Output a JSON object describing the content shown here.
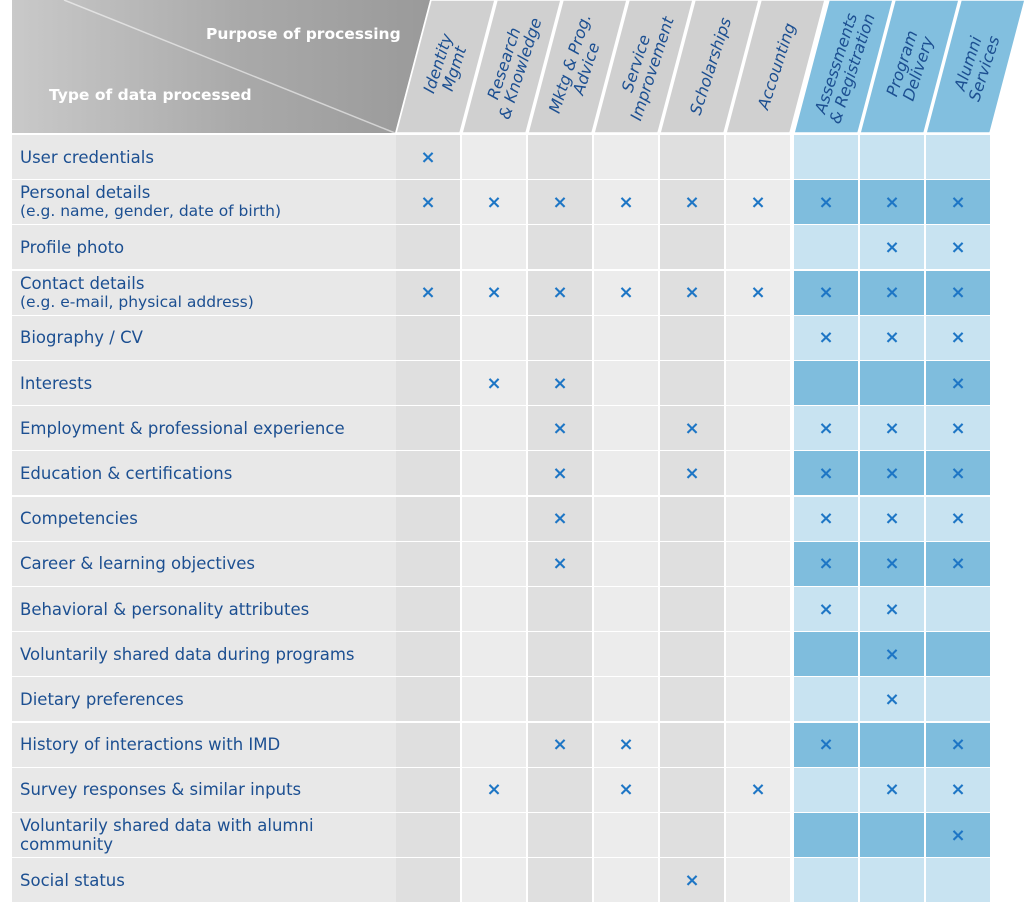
{
  "header": {
    "purpose_label": "Purpose of processing",
    "type_label": "Type of data processed"
  },
  "columns": [
    {
      "id": "identity-mgmt",
      "lines": [
        "Identity",
        "Mgmt"
      ],
      "group": "general"
    },
    {
      "id": "research-knowledge",
      "lines": [
        "Research",
        "& Knowledge"
      ],
      "group": "general"
    },
    {
      "id": "mktg-prog-advice",
      "lines": [
        "Mktg & Prog.",
        "Advice"
      ],
      "group": "general"
    },
    {
      "id": "service-improvement",
      "lines": [
        "Service",
        "Improvement"
      ],
      "group": "general"
    },
    {
      "id": "scholarships",
      "lines": [
        "Scholarships"
      ],
      "group": "general"
    },
    {
      "id": "accounting",
      "lines": [
        "Accounting"
      ],
      "group": "general"
    },
    {
      "id": "assessments-registration",
      "lines": [
        "Assessments",
        "& Registration"
      ],
      "group": "program"
    },
    {
      "id": "program-delivery",
      "lines": [
        "Program",
        "Delivery"
      ],
      "group": "program"
    },
    {
      "id": "alumni-services",
      "lines": [
        "Alumni",
        "Services"
      ],
      "group": "program"
    }
  ],
  "rows": [
    {
      "label": "User credentials",
      "marks": [
        1,
        0,
        0,
        0,
        0,
        0,
        0,
        0,
        0
      ]
    },
    {
      "label": "Personal details",
      "sub": "(e.g. name, gender, date of birth)",
      "marks": [
        1,
        1,
        1,
        1,
        1,
        1,
        1,
        1,
        1
      ]
    },
    {
      "label": "Profile photo",
      "marks": [
        0,
        0,
        0,
        0,
        0,
        0,
        0,
        1,
        1
      ]
    },
    {
      "label": "Contact details",
      "sub": "(e.g. e-mail, physical address)",
      "marks": [
        1,
        1,
        1,
        1,
        1,
        1,
        1,
        1,
        1
      ]
    },
    {
      "label": "Biography / CV",
      "marks": [
        0,
        0,
        0,
        0,
        0,
        0,
        1,
        1,
        1
      ]
    },
    {
      "label": "Interests",
      "marks": [
        0,
        1,
        1,
        0,
        0,
        0,
        0,
        0,
        1
      ]
    },
    {
      "label": "Employment & professional experience",
      "marks": [
        0,
        0,
        1,
        0,
        1,
        0,
        1,
        1,
        1
      ]
    },
    {
      "label": "Education & certifications",
      "marks": [
        0,
        0,
        1,
        0,
        1,
        0,
        1,
        1,
        1
      ]
    },
    {
      "label": "Competencies",
      "marks": [
        0,
        0,
        1,
        0,
        0,
        0,
        1,
        1,
        1
      ]
    },
    {
      "label": "Career & learning objectives",
      "marks": [
        0,
        0,
        1,
        0,
        0,
        0,
        1,
        1,
        1
      ]
    },
    {
      "label": "Behavioral & personality attributes",
      "marks": [
        0,
        0,
        0,
        0,
        0,
        0,
        1,
        1,
        0
      ]
    },
    {
      "label": "Voluntarily shared data during programs",
      "marks": [
        0,
        0,
        0,
        0,
        0,
        0,
        0,
        1,
        0
      ]
    },
    {
      "label": "Dietary preferences",
      "marks": [
        0,
        0,
        0,
        0,
        0,
        0,
        0,
        1,
        0
      ]
    },
    {
      "label": "History of interactions with IMD",
      "marks": [
        0,
        0,
        1,
        1,
        0,
        0,
        1,
        0,
        1
      ]
    },
    {
      "label": "Survey responses & similar inputs",
      "marks": [
        0,
        1,
        0,
        1,
        0,
        1,
        0,
        1,
        1
      ]
    },
    {
      "label": "Voluntarily shared data with alumni community",
      "marks": [
        0,
        0,
        0,
        0,
        0,
        0,
        0,
        0,
        1
      ]
    },
    {
      "label": "Social status",
      "marks": [
        0,
        0,
        0,
        0,
        1,
        0,
        0,
        0,
        0
      ]
    }
  ],
  "mark_symbol": "×",
  "colors": {
    "text_blue": "#1c4f91",
    "mark_blue": "#1e76c5",
    "row_gray": "#e8e8e8",
    "cell_gray_light": "#ececec",
    "cell_gray_dark": "#dfdfdf",
    "header_gray": "#a0a0a0",
    "header_gray_light": "#c7c7c7",
    "col_header_gray": "#d0d0d0",
    "col_header_blue": "#82bfdf",
    "cell_blue_light": "#c8e3f1",
    "cell_blue_dark": "#7fbddd"
  }
}
